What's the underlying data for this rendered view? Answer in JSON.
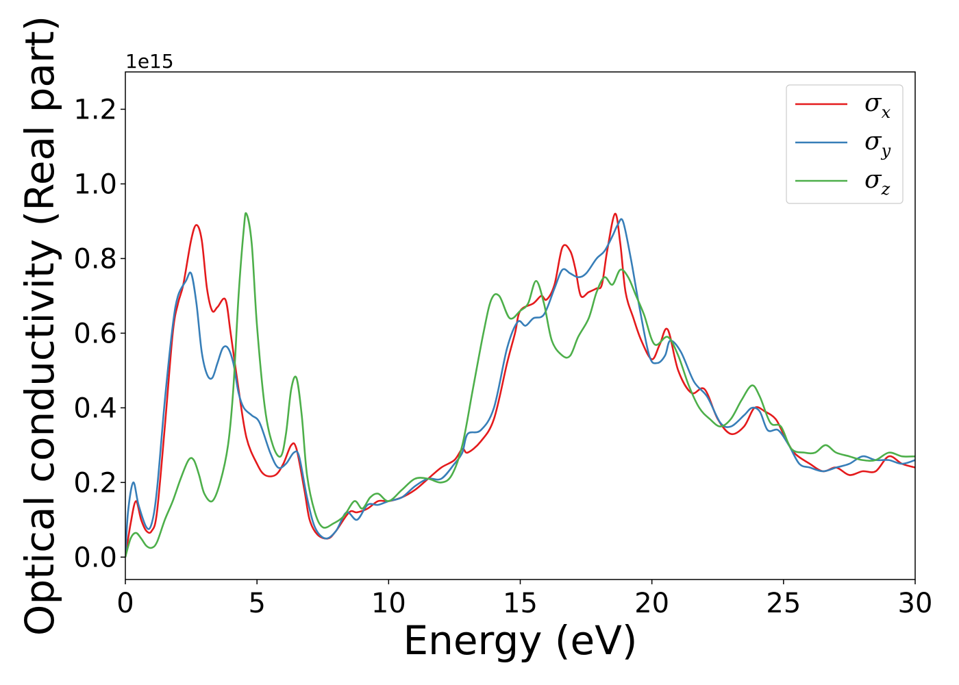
{
  "chart_data": {
    "type": "line",
    "title": "",
    "xlabel": "Energy (eV)",
    "ylabel": "Optical conductivity (Real part)",
    "y_offset_text": "1e15",
    "xlim": [
      0,
      30
    ],
    "ylim": [
      -0.06,
      1.3
    ],
    "xticks": [
      0,
      5,
      10,
      15,
      20,
      25,
      30
    ],
    "xtick_labels": [
      "0",
      "5",
      "10",
      "15",
      "20",
      "25",
      "30"
    ],
    "yticks": [
      0.0,
      0.2,
      0.4,
      0.6,
      0.8,
      1.0,
      1.2
    ],
    "ytick_labels": [
      "0.0",
      "0.2",
      "0.4",
      "0.6",
      "0.8",
      "1.0",
      "1.2"
    ],
    "grid": false,
    "legend_position": "top-right",
    "series": [
      {
        "name": "σ",
        "subscript": "x",
        "color": "#e41a1c",
        "x": [
          0,
          0.2,
          0.4,
          0.6,
          0.8,
          1.0,
          1.2,
          1.5,
          1.8,
          2.0,
          2.2,
          2.5,
          2.7,
          2.9,
          3.1,
          3.3,
          3.5,
          3.8,
          4.0,
          4.3,
          4.6,
          5.0,
          5.3,
          5.7,
          6.0,
          6.3,
          6.5,
          6.8,
          7.0,
          7.3,
          7.7,
          8.0,
          8.5,
          8.8,
          9.2,
          9.6,
          10.0,
          10.5,
          11.0,
          11.5,
          12.0,
          12.5,
          12.8,
          13.0,
          13.5,
          14.0,
          14.5,
          14.8,
          15.0,
          15.5,
          15.8,
          16.0,
          16.3,
          16.6,
          16.9,
          17.1,
          17.3,
          17.6,
          17.9,
          18.1,
          18.3,
          18.6,
          18.8,
          19.0,
          19.3,
          19.6,
          20.0,
          20.3,
          20.6,
          21.0,
          21.5,
          22.0,
          22.5,
          23.0,
          23.5,
          23.9,
          24.3,
          24.7,
          25.0,
          25.4,
          26.0,
          26.5,
          27.0,
          27.5,
          28.0,
          28.5,
          29.0,
          29.5,
          30.0
        ],
        "y": [
          0.0,
          0.09,
          0.15,
          0.1,
          0.07,
          0.07,
          0.12,
          0.35,
          0.6,
          0.68,
          0.73,
          0.85,
          0.89,
          0.85,
          0.72,
          0.66,
          0.67,
          0.69,
          0.6,
          0.45,
          0.32,
          0.25,
          0.22,
          0.22,
          0.25,
          0.3,
          0.29,
          0.18,
          0.1,
          0.06,
          0.05,
          0.07,
          0.12,
          0.12,
          0.13,
          0.15,
          0.15,
          0.16,
          0.18,
          0.21,
          0.24,
          0.26,
          0.29,
          0.28,
          0.31,
          0.37,
          0.52,
          0.6,
          0.66,
          0.68,
          0.7,
          0.69,
          0.73,
          0.83,
          0.82,
          0.77,
          0.7,
          0.71,
          0.72,
          0.73,
          0.82,
          0.92,
          0.84,
          0.71,
          0.64,
          0.58,
          0.53,
          0.57,
          0.61,
          0.5,
          0.44,
          0.45,
          0.37,
          0.33,
          0.35,
          0.4,
          0.39,
          0.37,
          0.33,
          0.28,
          0.25,
          0.23,
          0.24,
          0.22,
          0.23,
          0.23,
          0.27,
          0.25,
          0.24
        ]
      },
      {
        "name": "σ",
        "subscript": "y",
        "color": "#377eb8",
        "x": [
          0,
          0.1,
          0.3,
          0.5,
          0.8,
          1.0,
          1.2,
          1.5,
          1.8,
          2.0,
          2.3,
          2.5,
          2.7,
          2.9,
          3.1,
          3.3,
          3.5,
          3.7,
          3.9,
          4.1,
          4.3,
          4.5,
          4.8,
          5.1,
          5.5,
          5.8,
          6.1,
          6.4,
          6.6,
          6.9,
          7.2,
          7.6,
          8.0,
          8.4,
          8.8,
          9.2,
          9.6,
          10.0,
          10.5,
          11.0,
          11.5,
          12.0,
          12.5,
          12.8,
          13.0,
          13.5,
          14.0,
          14.5,
          14.9,
          15.2,
          15.5,
          15.9,
          16.3,
          16.6,
          16.9,
          17.2,
          17.5,
          17.9,
          18.2,
          18.5,
          18.7,
          18.9,
          19.2,
          19.5,
          19.9,
          20.2,
          20.5,
          20.7,
          21.1,
          21.6,
          22.1,
          22.6,
          23.0,
          23.5,
          23.8,
          24.1,
          24.4,
          24.8,
          25.2,
          25.6,
          26.0,
          26.5,
          27.0,
          27.5,
          28.0,
          28.5,
          29.0,
          29.5,
          30.0
        ],
        "y": [
          0.0,
          0.12,
          0.2,
          0.14,
          0.08,
          0.09,
          0.18,
          0.42,
          0.62,
          0.7,
          0.74,
          0.76,
          0.68,
          0.55,
          0.49,
          0.48,
          0.52,
          0.56,
          0.56,
          0.52,
          0.44,
          0.4,
          0.38,
          0.36,
          0.28,
          0.24,
          0.25,
          0.28,
          0.27,
          0.16,
          0.08,
          0.05,
          0.07,
          0.12,
          0.1,
          0.14,
          0.14,
          0.15,
          0.16,
          0.19,
          0.21,
          0.21,
          0.25,
          0.28,
          0.33,
          0.34,
          0.4,
          0.56,
          0.63,
          0.62,
          0.64,
          0.65,
          0.72,
          0.77,
          0.76,
          0.75,
          0.76,
          0.8,
          0.82,
          0.86,
          0.89,
          0.9,
          0.8,
          0.68,
          0.54,
          0.52,
          0.54,
          0.58,
          0.55,
          0.47,
          0.43,
          0.36,
          0.35,
          0.38,
          0.4,
          0.39,
          0.34,
          0.34,
          0.3,
          0.25,
          0.24,
          0.23,
          0.24,
          0.25,
          0.27,
          0.26,
          0.26,
          0.25,
          0.26
        ]
      },
      {
        "name": "σ",
        "subscript": "z",
        "color": "#4daf4a",
        "x": [
          0,
          0.2,
          0.4,
          0.6,
          0.8,
          1.0,
          1.2,
          1.5,
          1.8,
          2.1,
          2.4,
          2.6,
          2.8,
          3.0,
          3.3,
          3.6,
          3.9,
          4.1,
          4.3,
          4.5,
          4.6,
          4.8,
          5.0,
          5.3,
          5.6,
          5.9,
          6.1,
          6.3,
          6.5,
          6.7,
          6.9,
          7.2,
          7.5,
          7.9,
          8.3,
          8.7,
          9.0,
          9.3,
          9.6,
          10.0,
          10.5,
          11.0,
          11.5,
          12.0,
          12.4,
          12.8,
          13.2,
          13.6,
          13.9,
          14.2,
          14.6,
          15.0,
          15.3,
          15.6,
          15.9,
          16.2,
          16.6,
          16.9,
          17.2,
          17.6,
          17.9,
          18.2,
          18.5,
          18.8,
          19.1,
          19.4,
          19.7,
          20.1,
          20.6,
          21.0,
          21.4,
          21.8,
          22.2,
          22.6,
          23.0,
          23.4,
          23.8,
          24.1,
          24.5,
          24.9,
          25.3,
          25.8,
          26.2,
          26.6,
          27.0,
          27.5,
          28.0,
          28.5,
          29.0,
          29.5,
          30.0
        ],
        "y": [
          0.0,
          0.05,
          0.065,
          0.05,
          0.03,
          0.025,
          0.04,
          0.1,
          0.15,
          0.21,
          0.26,
          0.26,
          0.22,
          0.17,
          0.15,
          0.2,
          0.3,
          0.45,
          0.7,
          0.88,
          0.92,
          0.84,
          0.62,
          0.4,
          0.3,
          0.27,
          0.33,
          0.45,
          0.48,
          0.38,
          0.22,
          0.12,
          0.08,
          0.09,
          0.11,
          0.15,
          0.13,
          0.16,
          0.17,
          0.15,
          0.18,
          0.21,
          0.21,
          0.2,
          0.22,
          0.3,
          0.45,
          0.6,
          0.69,
          0.7,
          0.64,
          0.66,
          0.68,
          0.74,
          0.68,
          0.58,
          0.54,
          0.54,
          0.59,
          0.64,
          0.71,
          0.75,
          0.73,
          0.77,
          0.75,
          0.7,
          0.65,
          0.57,
          0.59,
          0.54,
          0.46,
          0.4,
          0.37,
          0.35,
          0.37,
          0.42,
          0.46,
          0.43,
          0.36,
          0.35,
          0.29,
          0.28,
          0.28,
          0.3,
          0.28,
          0.27,
          0.26,
          0.26,
          0.28,
          0.27,
          0.27
        ]
      }
    ]
  }
}
